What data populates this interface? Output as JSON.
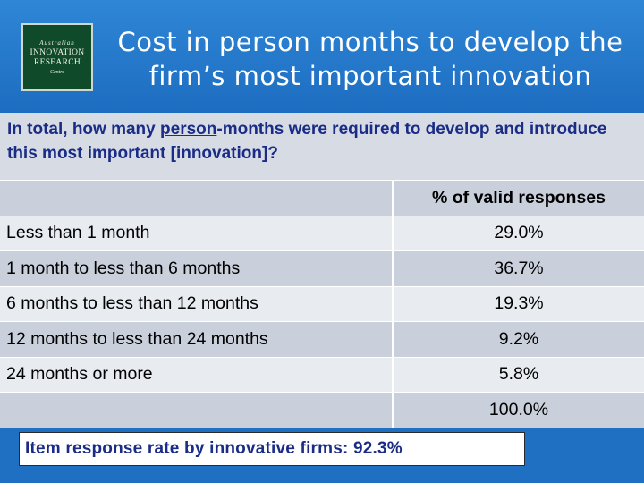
{
  "logo": {
    "line1": "Australian",
    "line2": "INNOVATION",
    "line3": "RESEARCH",
    "line4": "Centre"
  },
  "slide": {
    "title_line1": "Cost in person months to develop the",
    "title_line2": "firm’s most important innovation"
  },
  "question": {
    "text_part1": "In total, how many ",
    "text_underlined": "person",
    "text_part2": "-months were required to develop and introduce this most important [innovation]?"
  },
  "table": {
    "column_header": "% of valid responses",
    "rows": [
      {
        "label": "Less than 1 month",
        "value": "29.0%"
      },
      {
        "label": "1 month to less than 6 months",
        "value": "36.7%"
      },
      {
        "label": "6 months to less than 12 months",
        "value": "19.3%"
      },
      {
        "label": "12 months to less than 24 months",
        "value": "9.2%"
      },
      {
        "label": "24 months or more",
        "value": "5.8%"
      }
    ],
    "total": "100.0%"
  },
  "footer": {
    "text": "Item response rate by innovative firms: 92.3%"
  }
}
